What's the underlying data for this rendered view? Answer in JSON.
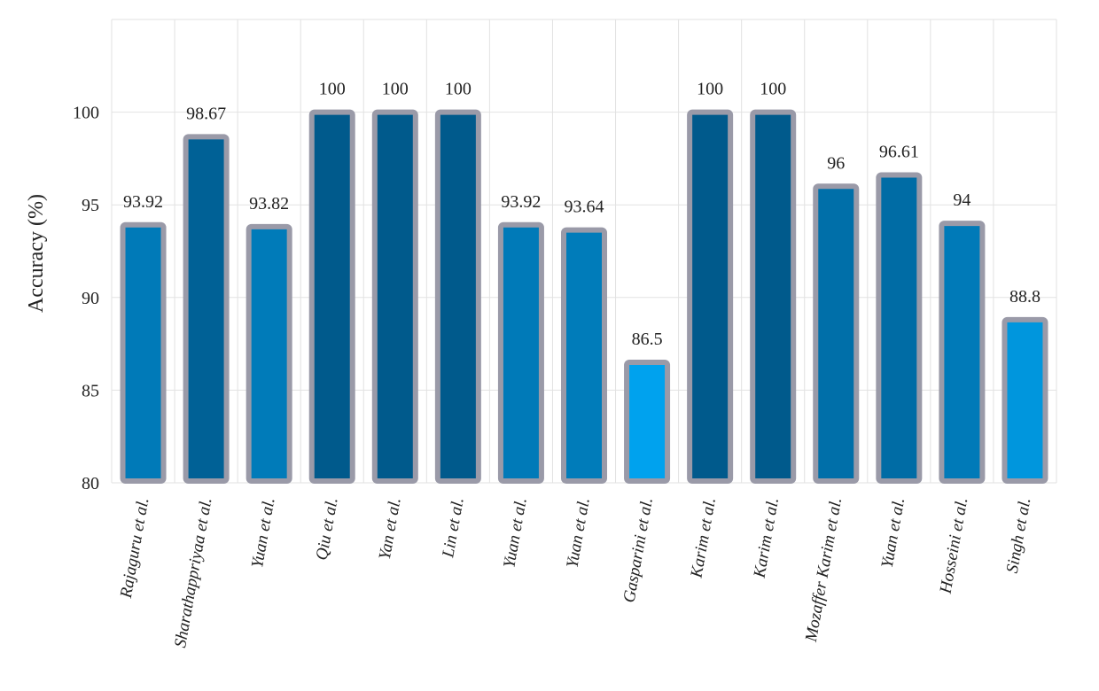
{
  "chart_data": {
    "type": "bar",
    "title": "",
    "xlabel": "",
    "ylabel": "Accuracy (%)",
    "ylim": [
      80,
      105
    ],
    "yticks": [
      80,
      85,
      90,
      95,
      100
    ],
    "grid": true,
    "categories": [
      "Rajaguru et al.",
      "Sharathappriyaa et al.",
      "Yuan et al.",
      "Qiu et al.",
      "Yan et al.",
      "Lin et al.",
      "Yuan et al.",
      "Yuan et al.",
      "Gasparini et al.",
      "Karim et al.",
      "Karim et al.",
      "Mozaffer Karim et al.",
      "Yuan et al.",
      "Hosseini et al.",
      "Singh et al."
    ],
    "values": [
      93.92,
      98.67,
      93.82,
      100,
      100,
      100,
      93.92,
      93.64,
      86.5,
      100,
      100,
      96,
      96.61,
      94,
      88.8
    ],
    "data_labels": [
      "93.92",
      "98.67",
      "93.82",
      "100",
      "100",
      "100",
      "93.92",
      "93.64",
      "86.5",
      "100",
      "100",
      "96",
      "96.61",
      "94",
      "88.8"
    ],
    "colors": {
      "bar_outline": "#9a9aa8",
      "bar_low": "#00a2ee",
      "bar_high": "#005a8c",
      "grid": "#e2e2e2",
      "text": "#222222"
    }
  }
}
